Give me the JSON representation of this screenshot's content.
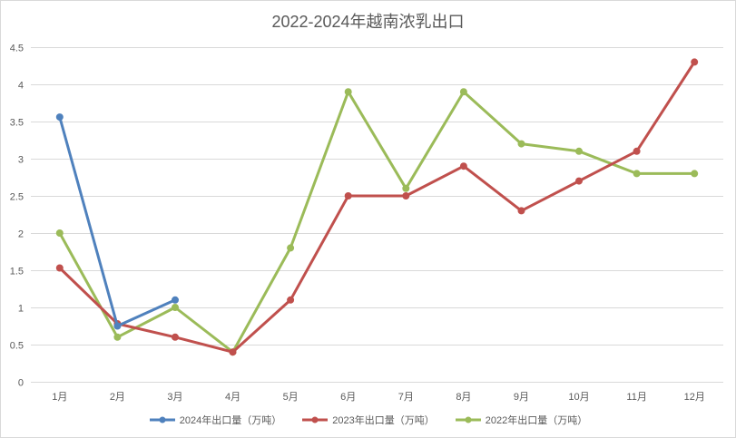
{
  "chart_data": {
    "type": "line",
    "title": "2022-2024年越南浓乳出口",
    "categories": [
      "1月",
      "2月",
      "3月",
      "4月",
      "5月",
      "6月",
      "7月",
      "8月",
      "9月",
      "10月",
      "11月",
      "12月"
    ],
    "yticks": [
      "0",
      "0.5",
      "1",
      "1.5",
      "2",
      "2.5",
      "3",
      "3.5",
      "4",
      "4.5"
    ],
    "ylim": [
      0,
      4.5
    ],
    "grid": true,
    "legend_position": "bottom",
    "series": [
      {
        "name": "2024年出口量（万吨）",
        "color": "#4f81bd",
        "values": [
          3.56,
          0.75,
          1.1,
          null,
          null,
          null,
          null,
          null,
          null,
          null,
          null,
          null
        ]
      },
      {
        "name": "2023年出口量（万吨）",
        "color": "#c0504d",
        "values": [
          1.53,
          0.78,
          0.6,
          0.4,
          1.1,
          2.5,
          2.5,
          2.9,
          2.3,
          2.7,
          3.1,
          4.3
        ]
      },
      {
        "name": "2022年出口量（万吨）",
        "color": "#9bbb59",
        "values": [
          2.0,
          0.6,
          1.0,
          0.4,
          1.8,
          3.9,
          2.6,
          3.9,
          3.2,
          3.1,
          2.8,
          2.8
        ]
      }
    ]
  }
}
